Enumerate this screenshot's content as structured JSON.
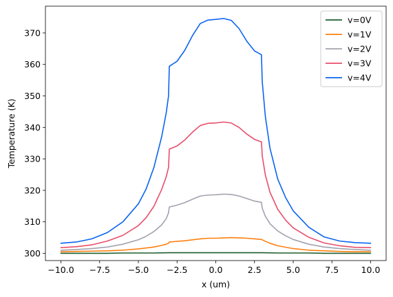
{
  "chart_data": {
    "type": "line",
    "xlabel": "x (um)",
    "ylabel": "Temperature (K)",
    "xlim": [
      -11.0,
      11.0
    ],
    "ylim": [
      297.7,
      378.5
    ],
    "xticks": [
      -10.0,
      -7.5,
      -5.0,
      -2.5,
      0.0,
      2.5,
      5.0,
      7.5,
      10.0
    ],
    "xtick_labels": [
      "−10.0",
      "−7.5",
      "−5.0",
      "−2.5",
      "0.0",
      "2.5",
      "5.0",
      "7.5",
      "10.0"
    ],
    "yticks": [
      300,
      310,
      320,
      330,
      340,
      350,
      360,
      370
    ],
    "ytick_labels": [
      "300",
      "310",
      "320",
      "330",
      "340",
      "350",
      "360",
      "370"
    ],
    "grid": false,
    "legend_position": "top-right",
    "series": [
      {
        "name": "v=0V",
        "color": "#1a5e2a",
        "x": [
          -10,
          -9,
          -8,
          -7,
          -6,
          -5,
          -4,
          -3,
          -2.5,
          -2,
          -1,
          0,
          1,
          2,
          2.5,
          3,
          4,
          5,
          6,
          7,
          8,
          9,
          10
        ],
        "y": [
          300.0,
          300.0,
          300.0,
          300.0,
          300.1,
          300.1,
          300.1,
          300.2,
          300.2,
          300.2,
          300.2,
          300.2,
          300.2,
          300.2,
          300.2,
          300.2,
          300.1,
          300.1,
          300.1,
          300.0,
          300.0,
          300.0,
          300.0
        ]
      },
      {
        "name": "v=1V",
        "color": "#ff7f0e",
        "x": [
          -10,
          -9,
          -8,
          -7,
          -6,
          -5,
          -4,
          -3.5,
          -3.2,
          -3.05,
          -3.0,
          -2.5,
          -2,
          -1.5,
          -1,
          -0.5,
          0,
          0.5,
          1,
          1.5,
          2,
          2.5,
          2.95,
          3.0,
          3.2,
          3.5,
          4,
          5,
          6,
          7,
          8,
          9,
          10
        ],
        "y": [
          300.5,
          300.6,
          300.7,
          300.8,
          301.0,
          301.4,
          302.0,
          302.5,
          302.9,
          303.2,
          303.6,
          303.8,
          304.0,
          304.3,
          304.6,
          304.8,
          304.8,
          304.9,
          305.0,
          304.9,
          304.8,
          304.6,
          304.4,
          304.3,
          303.8,
          303.2,
          302.4,
          301.5,
          301.0,
          300.8,
          300.6,
          300.5,
          300.5
        ]
      },
      {
        "name": "v=2V",
        "color": "#a2a2ae",
        "x": [
          -10,
          -9,
          -8,
          -7,
          -6,
          -5,
          -4.5,
          -4,
          -3.5,
          -3.2,
          -3.05,
          -3.0,
          -2.5,
          -2,
          -1.5,
          -1,
          -0.5,
          0,
          0.5,
          1,
          1.5,
          2,
          2.5,
          2.95,
          3.0,
          3.2,
          3.5,
          4,
          4.5,
          5,
          6,
          7,
          8,
          9,
          10
        ],
        "y": [
          301.0,
          301.2,
          301.5,
          302.0,
          302.9,
          304.3,
          305.4,
          306.9,
          309.0,
          311.0,
          312.9,
          314.7,
          315.3,
          316.1,
          317.2,
          318.2,
          318.5,
          318.6,
          318.8,
          318.7,
          318.2,
          317.4,
          316.6,
          316.2,
          314.3,
          311.8,
          309.4,
          307.1,
          305.6,
          304.4,
          302.9,
          302.0,
          301.5,
          301.2,
          301.0
        ]
      },
      {
        "name": "v=3V",
        "color": "#e84d6b",
        "x": [
          -10,
          -9,
          -8,
          -7,
          -6,
          -5,
          -4.5,
          -4,
          -3.5,
          -3.2,
          -3.05,
          -3.0,
          -2.5,
          -2,
          -1.5,
          -1,
          -0.5,
          0,
          0.5,
          1,
          1.5,
          2,
          2.5,
          2.95,
          3.0,
          3.2,
          3.5,
          4,
          4.5,
          5,
          6,
          7,
          8,
          9,
          10
        ],
        "y": [
          301.8,
          302.1,
          302.7,
          303.9,
          305.7,
          308.8,
          311.3,
          314.9,
          320.2,
          324.3,
          327.3,
          333.1,
          334.1,
          336.0,
          338.5,
          340.6,
          341.3,
          341.4,
          341.7,
          341.4,
          340.0,
          337.9,
          336.2,
          335.4,
          331.0,
          324.9,
          319.4,
          314.0,
          310.6,
          308.1,
          305.1,
          303.3,
          302.4,
          301.9,
          301.8
        ]
      },
      {
        "name": "v=4V",
        "color": "#0a64f0",
        "x": [
          -10,
          -9,
          -8,
          -7,
          -6,
          -5,
          -4.5,
          -4,
          -3.5,
          -3.2,
          -3.05,
          -3.0,
          -2.5,
          -2,
          -1.5,
          -1,
          -0.5,
          0,
          0.5,
          1,
          1.5,
          2,
          2.5,
          2.95,
          3.0,
          3.2,
          3.5,
          4,
          4.5,
          5,
          6,
          7,
          8,
          9,
          10
        ],
        "y": [
          303.2,
          303.6,
          304.6,
          306.6,
          310.0,
          315.7,
          320.4,
          327.2,
          336.9,
          344.6,
          350.0,
          359.4,
          361.0,
          364.5,
          369.2,
          373.0,
          374.1,
          374.3,
          374.6,
          374.0,
          371.4,
          367.4,
          364.3,
          363.1,
          354.6,
          343.5,
          333.4,
          323.6,
          317.8,
          313.5,
          308.3,
          305.2,
          303.9,
          303.4,
          303.2
        ]
      }
    ]
  }
}
